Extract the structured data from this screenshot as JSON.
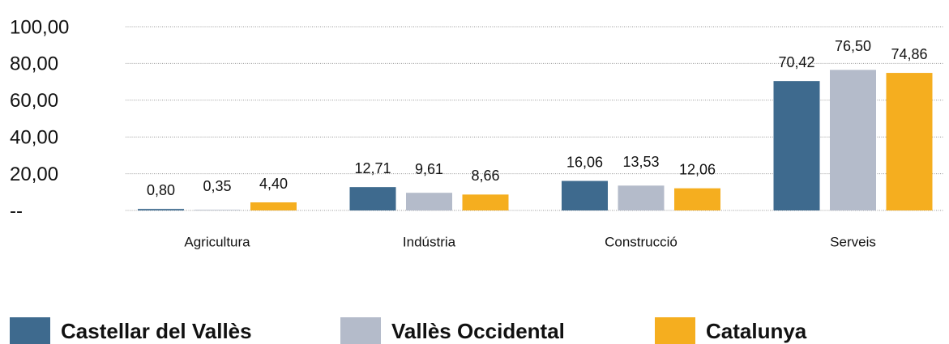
{
  "chart_data": {
    "type": "bar",
    "categories": [
      "Agricultura",
      "Indústria",
      "Construcció",
      "Serveis"
    ],
    "series": [
      {
        "name": "Castellar del Vallès",
        "color": "#3e6a8e",
        "values": [
          0.8,
          12.71,
          16.06,
          70.42
        ],
        "value_labels": [
          "0,80",
          "12,71",
          "16,06",
          "70,42"
        ]
      },
      {
        "name": "Vallès Occidental",
        "color": "#b4bbca",
        "values": [
          0.35,
          9.61,
          13.53,
          76.5
        ],
        "value_labels": [
          "0,35",
          "9,61",
          "13,53",
          "76,50"
        ]
      },
      {
        "name": "Catalunya",
        "color": "#f5ae1f",
        "values": [
          4.4,
          8.66,
          12.06,
          74.86
        ],
        "value_labels": [
          "4,40",
          "8,66",
          "12,06",
          "74,86"
        ]
      }
    ],
    "ylim": [
      0,
      100
    ],
    "yticks": [
      {
        "value": 0,
        "label": "--"
      },
      {
        "value": 20,
        "label": "20,00"
      },
      {
        "value": 40,
        "label": "40,00"
      },
      {
        "value": 60,
        "label": "60,00"
      },
      {
        "value": 80,
        "label": "80,00"
      },
      {
        "value": 100,
        "label": "100,00"
      }
    ],
    "grid": true
  }
}
